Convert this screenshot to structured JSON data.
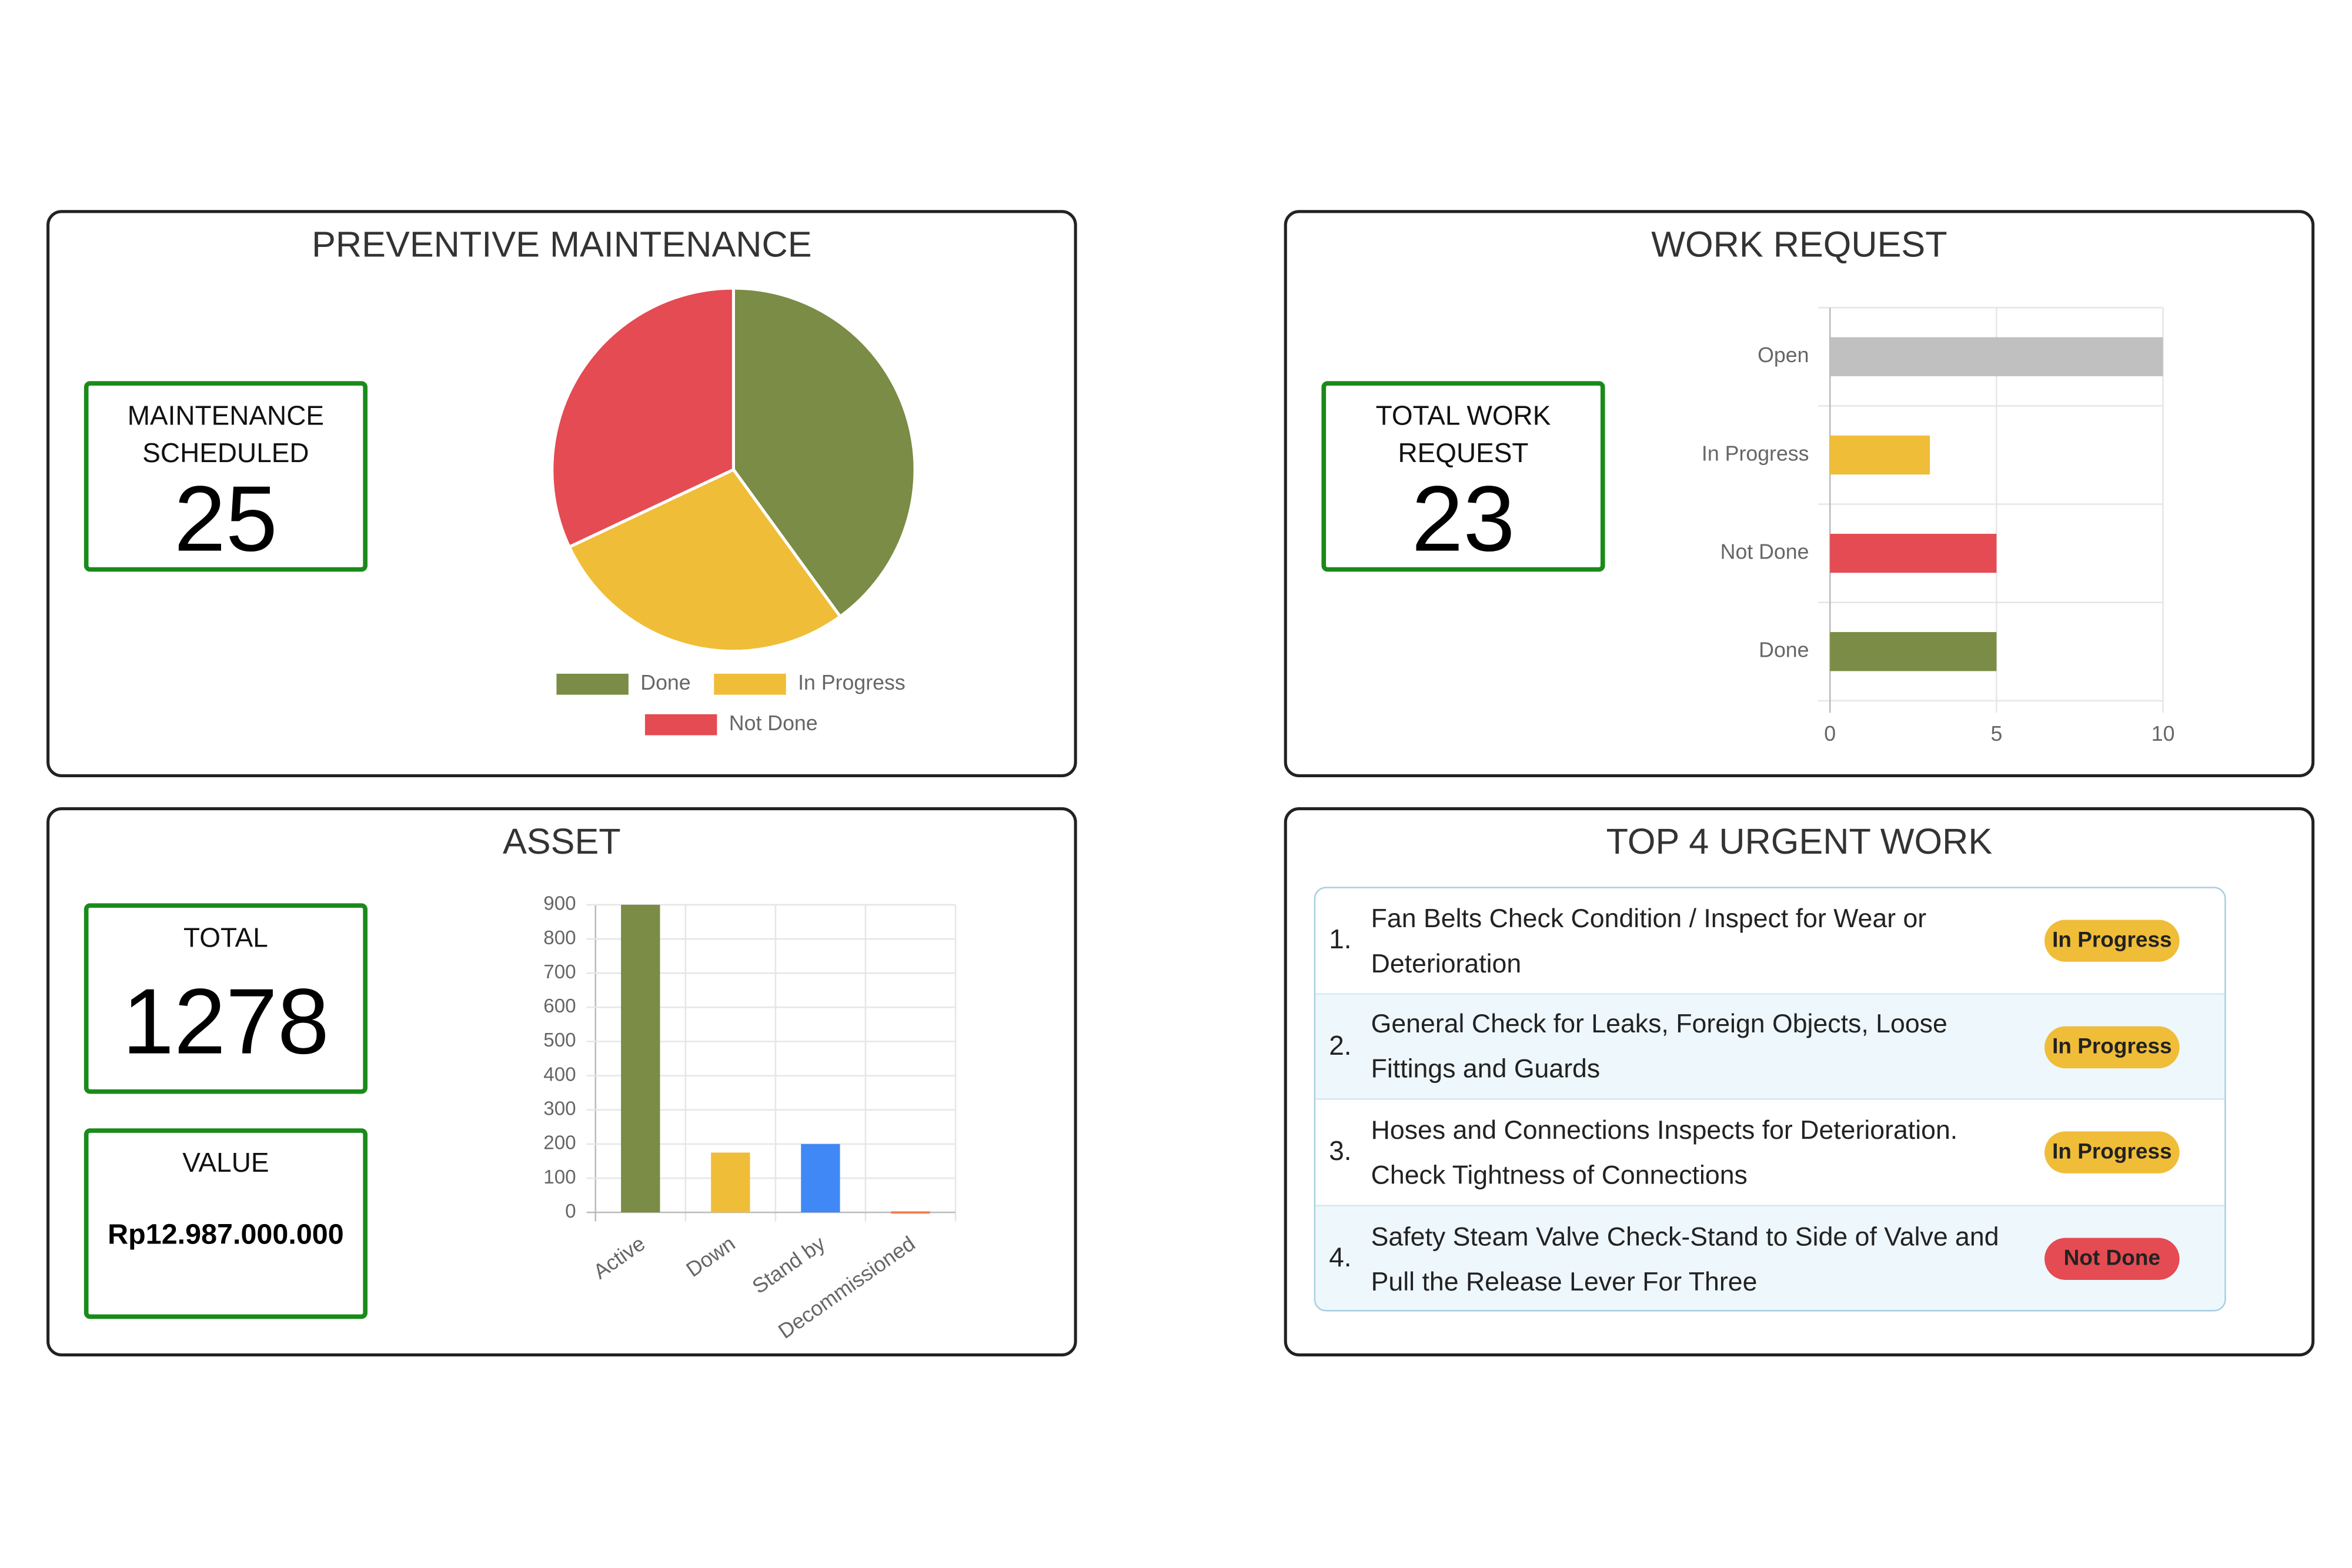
{
  "chart_data": [
    {
      "type": "pie",
      "title": "PREVENTIVE MAINTENANCE",
      "categories": [
        "Done",
        "In Progress",
        "Not Done"
      ],
      "values": [
        10,
        7,
        8
      ],
      "colors": [
        "#7a8c45",
        "#f0bd38",
        "#e44b52"
      ]
    },
    {
      "type": "hbar",
      "title": "WORK REQUEST",
      "categories": [
        "Open",
        "In Progress",
        "Not Done",
        "Done"
      ],
      "values": [
        10,
        3,
        5,
        5
      ],
      "colors": [
        "#c0c0c0",
        "#f0bd38",
        "#e44b52",
        "#7a8c45"
      ],
      "xlim": [
        0,
        10
      ],
      "xticks": [
        0,
        5,
        10
      ],
      "grid": true
    },
    {
      "type": "bar",
      "title": "ASSET",
      "categories": [
        "Active",
        "Down",
        "Stand by",
        "Decommissioned"
      ],
      "values": [
        900,
        175,
        200,
        3
      ],
      "colors": [
        "#7a8c45",
        "#f0bd38",
        "#3f88f5",
        "#f07c45"
      ],
      "ylim": [
        0,
        900
      ],
      "yticks": [
        0,
        100,
        200,
        300,
        400,
        500,
        600,
        700,
        800,
        900
      ],
      "grid": true
    }
  ],
  "cards": [
    {
      "label": "MAINTENANCE SCHEDULED",
      "value": 25
    },
    {
      "label": "TOTAL WORK REQUEST",
      "value": 23
    },
    {
      "label": "TOTAL",
      "value": 1278
    },
    {
      "label": "VALUE",
      "value": "Rp12.987.000.000"
    }
  ],
  "urgent_work": {
    "title": "TOP 4 URGENT WORK",
    "items": [
      {
        "number": "1.",
        "task": "Fan Belts Check Condition / Inspect for Wear or Deterioration",
        "status": "In Progress"
      },
      {
        "number": "2.",
        "task": "General Check for Leaks, Foreign Objects, Loose Fittings and Guards",
        "status": "In Progress"
      },
      {
        "number": "3.",
        "task": "Hoses and Connections Inspects for Deterioration. Check Tightness of Connections",
        "status": "In Progress"
      },
      {
        "number": "4.",
        "task": "Safety Steam Valve Check-Stand to Side of Valve and Pull the Release Lever For Three",
        "status": "Not Done"
      }
    ]
  }
}
